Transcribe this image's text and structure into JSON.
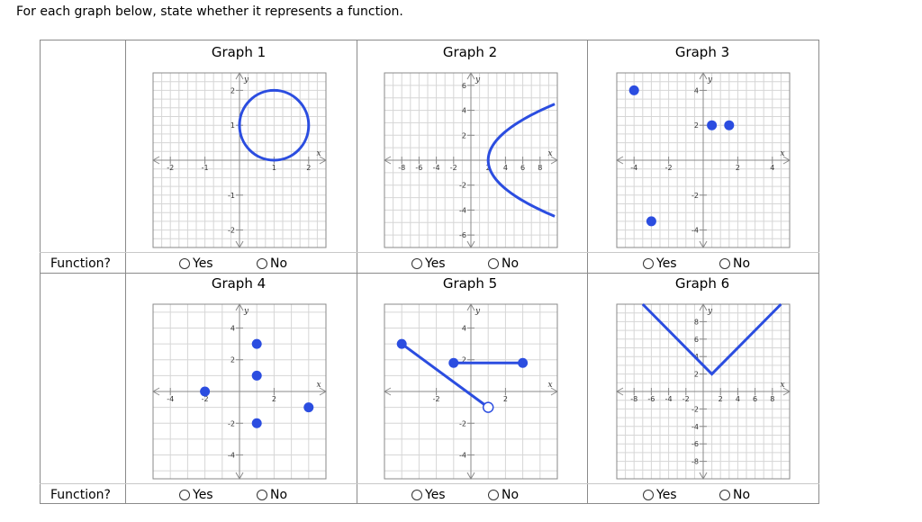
{
  "prompt": "For each graph below, state whether it represents a function.",
  "row_label": "Function?",
  "options": {
    "yes": "Yes",
    "no": "No"
  },
  "graphs": [
    {
      "title": "Graph 1"
    },
    {
      "title": "Graph 2"
    },
    {
      "title": "Graph 3"
    },
    {
      "title": "Graph 4"
    },
    {
      "title": "Graph 5"
    },
    {
      "title": "Graph 6"
    }
  ],
  "chart_data": [
    {
      "type": "scatter",
      "title": "Graph 1",
      "xlim": [
        -2.5,
        2.5
      ],
      "ylim": [
        -2.5,
        2.5
      ],
      "xticks": [
        -2,
        -1,
        1,
        2
      ],
      "xtick_labels": [
        "-2",
        "-1",
        "1",
        "2"
      ],
      "yticks": [
        -2,
        -1,
        1,
        2
      ],
      "ytick_labels": [
        "-2",
        "-1",
        "1",
        "2"
      ],
      "xlabel": "x",
      "ylabel": "y",
      "grid_step": 0.25,
      "shapes": [
        {
          "kind": "circle",
          "center": [
            1,
            1
          ],
          "radius": 1
        }
      ]
    },
    {
      "type": "line",
      "title": "Graph 2",
      "xlim": [
        -10,
        10
      ],
      "ylim": [
        -7,
        7
      ],
      "xticks": [
        -8,
        -6,
        -4,
        -2,
        2,
        4,
        6,
        8
      ],
      "xtick_labels": [
        "-8",
        "-6",
        "-4",
        "-2",
        "2",
        "4",
        "6",
        "8"
      ],
      "yticks": [
        -6,
        -4,
        -2,
        2,
        4,
        6
      ],
      "ytick_labels": [
        "-6",
        "-4",
        "-2",
        "2",
        "4",
        "6"
      ],
      "xlabel": "x",
      "ylabel": "y",
      "grid_step": 1,
      "shapes": [
        {
          "kind": "parabola_x",
          "vertex": [
            2,
            0
          ],
          "a": 0.38,
          "y_range": [
            -4.5,
            4.5
          ]
        }
      ]
    },
    {
      "type": "scatter",
      "title": "Graph 3",
      "xlim": [
        -5,
        5
      ],
      "ylim": [
        -5,
        5
      ],
      "xticks": [
        -4,
        -2,
        2,
        4
      ],
      "xtick_labels": [
        "-4",
        "-2",
        "2",
        "4"
      ],
      "yticks": [
        -4,
        -2,
        2,
        4
      ],
      "ytick_labels": [
        "-4",
        "-2",
        "2",
        "4"
      ],
      "xlabel": "x",
      "ylabel": "y",
      "grid_step": 0.5,
      "points": [
        [
          -4,
          4
        ],
        [
          0.5,
          2
        ],
        [
          1.5,
          2
        ],
        [
          -3,
          -3.5
        ]
      ]
    },
    {
      "type": "scatter",
      "title": "Graph 4",
      "xlim": [
        -5,
        5
      ],
      "ylim": [
        -5.5,
        5.5
      ],
      "xticks": [
        -4,
        -2,
        2
      ],
      "xtick_labels": [
        "-4",
        "-2",
        "2"
      ],
      "yticks": [
        -4,
        -2,
        2,
        4
      ],
      "ytick_labels": [
        "-4",
        "-2",
        "2",
        "4"
      ],
      "xlabel": "x",
      "ylabel": "y",
      "grid_step": 1,
      "points": [
        [
          -2,
          0
        ],
        [
          1,
          3
        ],
        [
          1,
          1
        ],
        [
          1,
          -2
        ],
        [
          4,
          -1
        ]
      ]
    },
    {
      "type": "line",
      "title": "Graph 5",
      "xlim": [
        -5,
        5
      ],
      "ylim": [
        -5.5,
        5.5
      ],
      "xticks": [
        -2,
        2
      ],
      "xtick_labels": [
        "-2",
        "2"
      ],
      "yticks": [
        -4,
        -2,
        2,
        4
      ],
      "ytick_labels": [
        "-4",
        "-2",
        "2",
        "4"
      ],
      "xlabel": "x",
      "ylabel": "y",
      "grid_step": 1,
      "segments": [
        {
          "from": [
            -4,
            3
          ],
          "to": [
            1,
            -1
          ],
          "start_closed": true,
          "end_closed": false
        },
        {
          "from": [
            -1,
            1.8
          ],
          "to": [
            3,
            1.8
          ],
          "start_closed": true,
          "end_closed": true
        }
      ]
    },
    {
      "type": "line",
      "title": "Graph 6",
      "xlim": [
        -10,
        10
      ],
      "ylim": [
        -10,
        10
      ],
      "xticks": [
        -8,
        -6,
        -4,
        -2,
        2,
        4,
        6,
        8
      ],
      "xtick_labels": [
        "-8",
        "-6",
        "-4",
        "-2",
        "2",
        "4",
        "6",
        "8"
      ],
      "yticks": [
        -8,
        -6,
        -4,
        -2,
        2,
        4,
        6,
        8
      ],
      "ytick_labels": [
        "-8",
        "-6",
        "-4",
        "-2",
        "2",
        "4",
        "6",
        "8"
      ],
      "xlabel": "x",
      "ylabel": "y",
      "grid_step": 1,
      "polyline": [
        [
          -7,
          10
        ],
        [
          1,
          2
        ],
        [
          9,
          10
        ]
      ]
    }
  ],
  "colors": {
    "curve": "#2b4de0",
    "grid": "#d6d6d6",
    "axis": "#8a8a8a",
    "border": "#8a8a8a"
  }
}
